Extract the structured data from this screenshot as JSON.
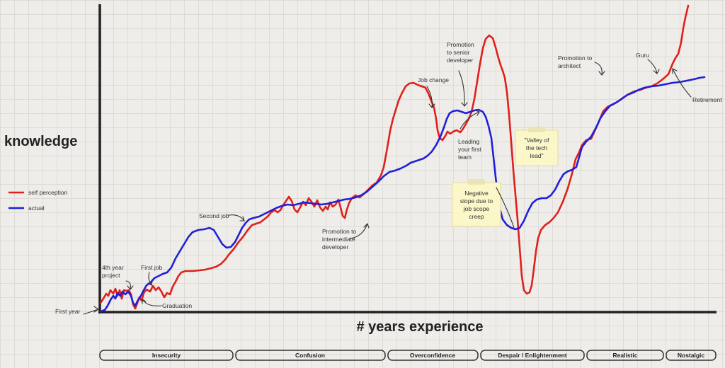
{
  "axes": {
    "ylabel": "knowledge",
    "xlabel": "# years experience"
  },
  "legend": {
    "items": [
      {
        "label": "self perception",
        "color": "#e0201b"
      },
      {
        "label": "actual",
        "color": "#2020d8"
      }
    ]
  },
  "annotations": {
    "first_year": "First year",
    "fourth_year": [
      "4th year",
      "project"
    ],
    "first_job": "First job",
    "graduation": "Graduation",
    "second_job": "Second job",
    "promotion_intermediate": [
      "Promotion to",
      "intermediate",
      "developer"
    ],
    "job_change": "Job change",
    "promotion_senior": [
      "Promotion",
      "to senior",
      "developer"
    ],
    "leading_team": [
      "Leading",
      "your first",
      "team"
    ],
    "promotion_architect": [
      "Promotion to",
      "architect"
    ],
    "guru": "Guru",
    "retirement": "Retirement"
  },
  "notes": {
    "negative_slope": [
      "Negative",
      "slope due to",
      "job scope",
      "creep"
    ],
    "valley": [
      "\"Valley of",
      "the tech",
      "lead\""
    ]
  },
  "phases": [
    "Insecurity",
    "Confusion",
    "Overconfidence",
    "Despair / Enlightenment",
    "Realistic",
    "Nostalgic"
  ],
  "colors": {
    "self_perception": "#e0201b",
    "actual": "#2020d8",
    "axis": "#222222",
    "note_bg": "#fbf7c9"
  }
}
